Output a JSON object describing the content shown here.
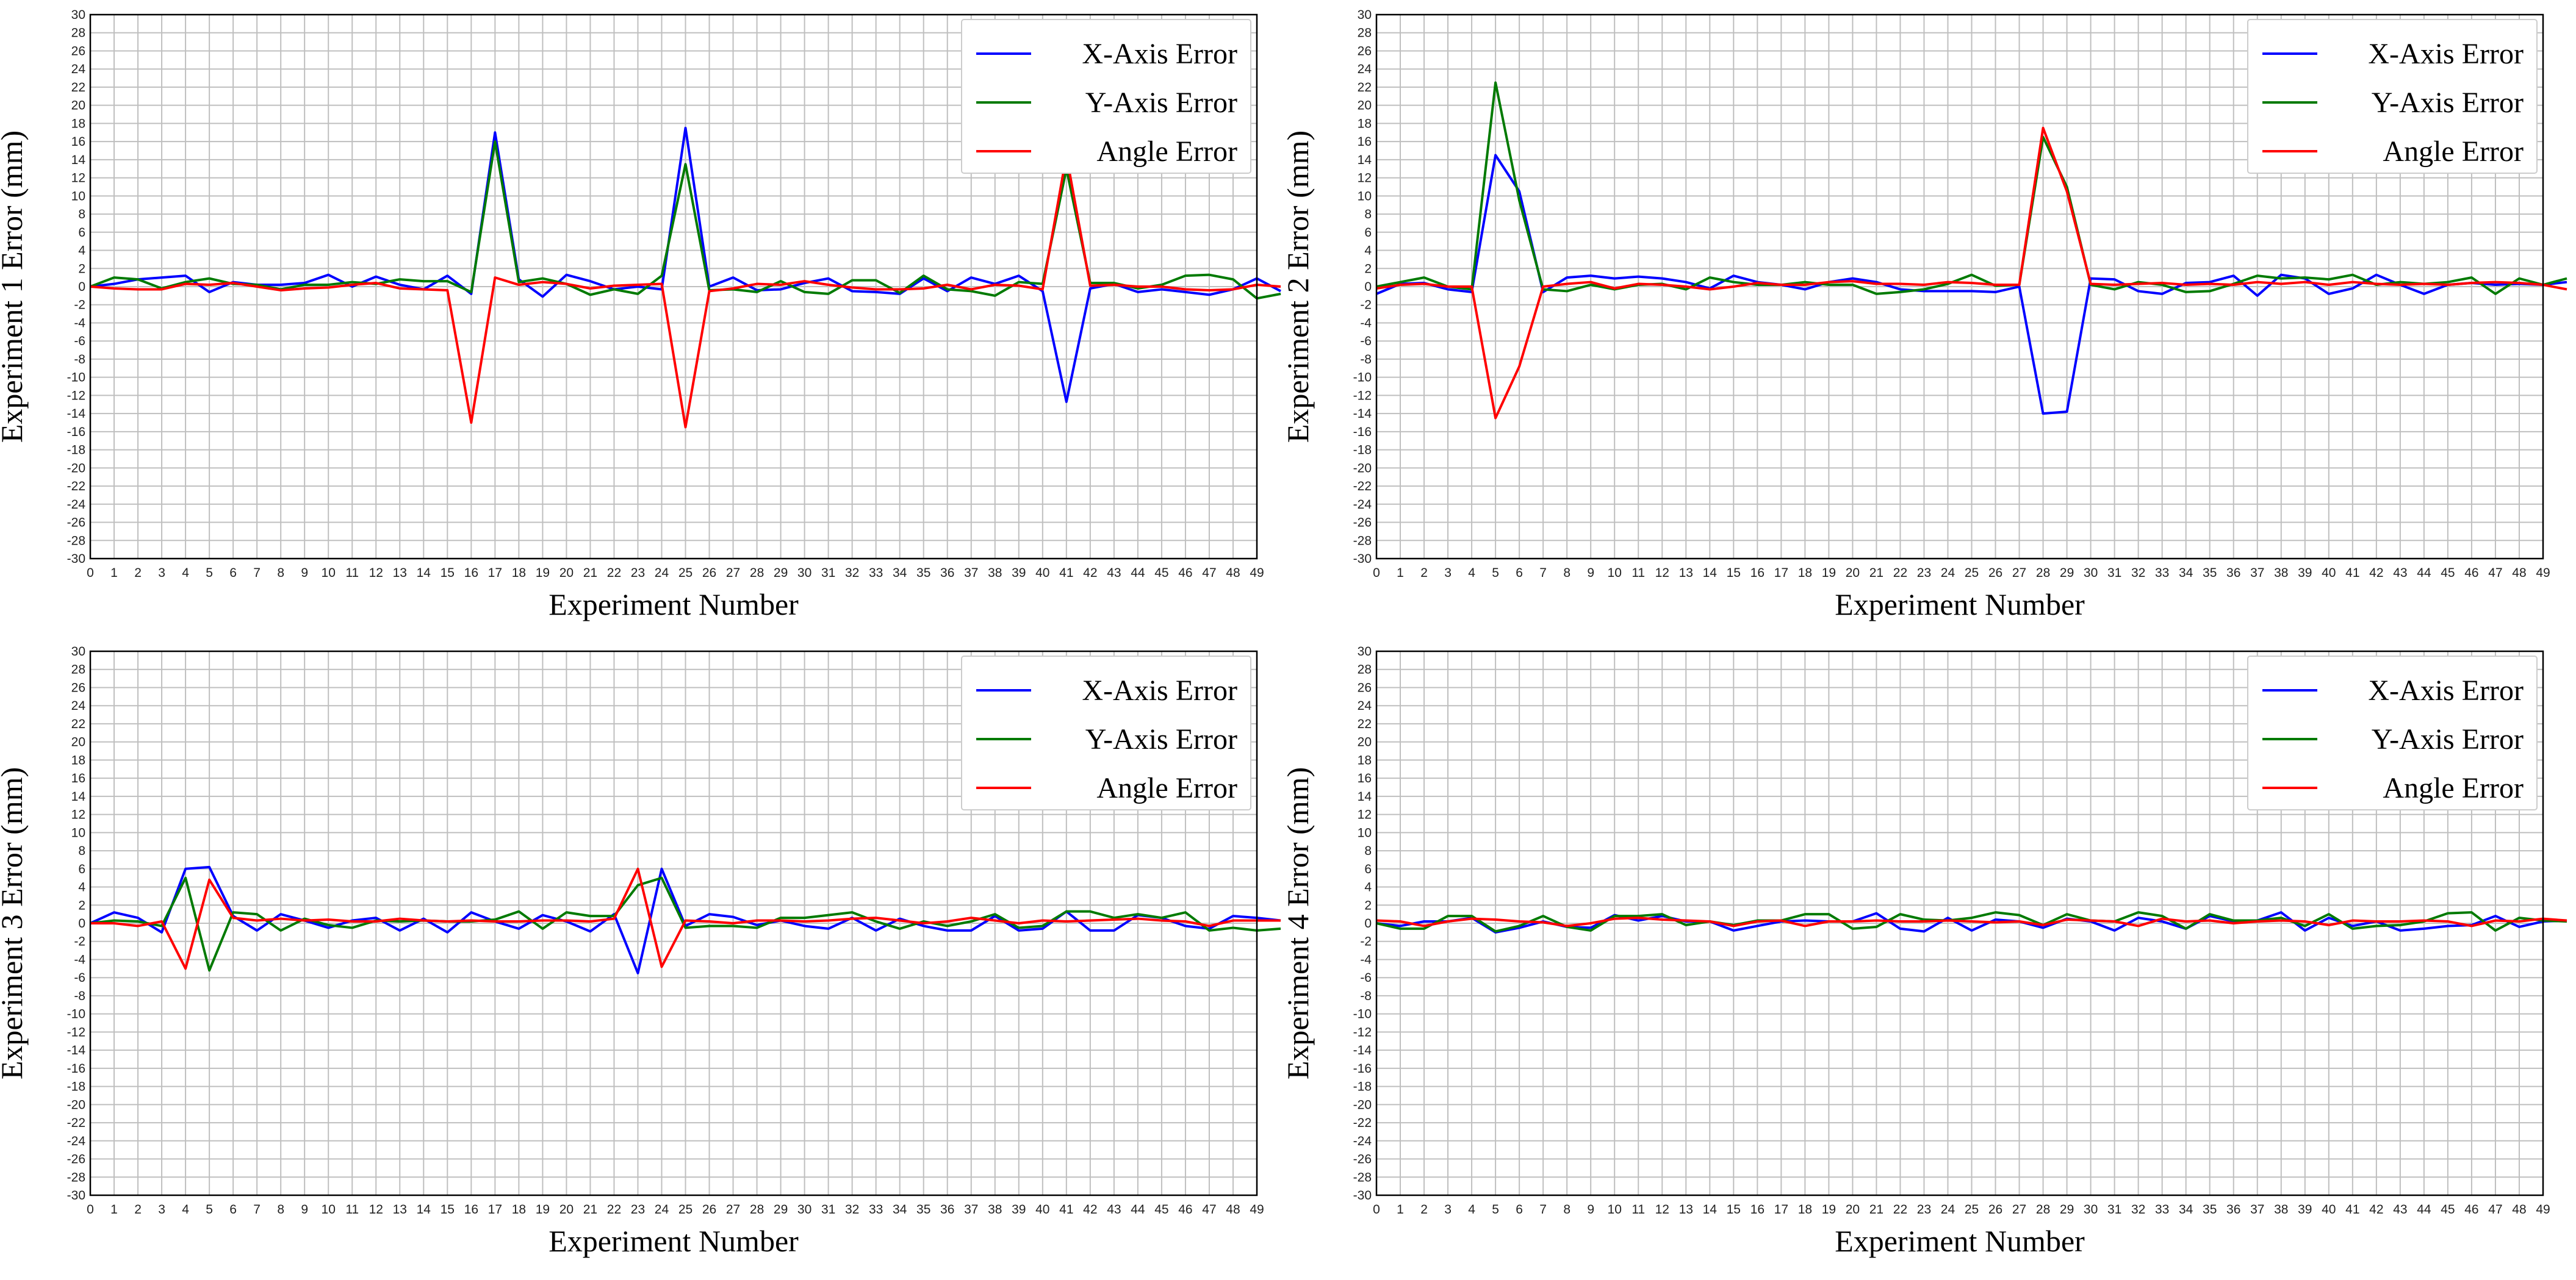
{
  "chart_data": [
    {
      "type": "line",
      "title": "",
      "xlabel": "Experiment Number",
      "ylabel": "Experiment 1 Error (mm)",
      "xlim": [
        0,
        49
      ],
      "ylim": [
        -30,
        30
      ],
      "ytick_step": 2,
      "grid": true,
      "legend_position": "top-right",
      "series": [
        {
          "name": "X-Axis Error",
          "color": "#0000ff",
          "values": [
            0,
            0.3,
            0.8,
            1,
            1.2,
            -0.6,
            0.5,
            0.2,
            0.2,
            0.4,
            1.3,
            0,
            1.1,
            0.2,
            -0.3,
            1.2,
            -0.8,
            17,
            0.8,
            -1.1,
            1.3,
            0.6,
            -0.3,
            0,
            -0.3,
            17.5,
            0,
            1,
            -0.4,
            -0.3,
            0.4,
            0.9,
            -0.5,
            -0.6,
            -0.8,
            0.9,
            -0.5,
            1,
            0.3,
            1.2,
            -0.5,
            -12.7,
            -0.2,
            0.3,
            -0.6,
            -0.3,
            -0.6,
            -0.9,
            -0.3,
            0.9,
            -0.5
          ]
        },
        {
          "name": "Y-Axis Error",
          "color": "#007a00",
          "values": [
            0,
            1,
            0.8,
            -0.2,
            0.5,
            0.9,
            0.3,
            0.2,
            -0.3,
            0.2,
            0.2,
            0.5,
            0.3,
            0.8,
            0.6,
            0.6,
            -0.6,
            16,
            0.5,
            0.9,
            0.3,
            -0.9,
            -0.3,
            -0.8,
            1.2,
            13.5,
            -0.4,
            -0.3,
            -0.6,
            0.6,
            -0.6,
            -0.8,
            0.7,
            0.7,
            -0.7,
            1.2,
            -0.3,
            -0.5,
            -1,
            0.5,
            0.3,
            13,
            0.4,
            0.4,
            -0.2,
            0.2,
            1.2,
            1.3,
            0.8,
            -1.3,
            -0.8
          ]
        },
        {
          "name": "Angle Error",
          "color": "#ff0000",
          "values": [
            0,
            -0.2,
            -0.3,
            -0.3,
            0.3,
            0.2,
            0.4,
            0,
            -0.4,
            -0.2,
            -0.1,
            0.2,
            0.4,
            -0.2,
            -0.3,
            -0.4,
            -15,
            1,
            0.2,
            0.5,
            0.3,
            -0.2,
            0.1,
            0.2,
            0.3,
            -15.5,
            -0.5,
            -0.2,
            0.3,
            0.2,
            0.6,
            0.2,
            -0.1,
            -0.3,
            -0.3,
            -0.2,
            0.2,
            -0.3,
            0.2,
            0.1,
            -0.3,
            14.5,
            0.1,
            0.2,
            0,
            0,
            -0.3,
            -0.4,
            -0.3,
            0.2,
            0
          ]
        }
      ]
    },
    {
      "type": "line",
      "title": "",
      "xlabel": "Experiment Number",
      "ylabel": "Experiment 2 Error (mm)",
      "xlim": [
        0,
        49
      ],
      "ylim": [
        -30,
        30
      ],
      "ytick_step": 2,
      "grid": true,
      "legend_position": "top-right",
      "series": [
        {
          "name": "X-Axis Error",
          "color": "#0000ff",
          "values": [
            -0.8,
            0.3,
            0.4,
            -0.3,
            -0.6,
            14.5,
            10.5,
            -0.6,
            1,
            1.2,
            0.9,
            1.1,
            0.9,
            0.5,
            -0.2,
            1.2,
            0.5,
            0.2,
            -0.3,
            0.5,
            0.9,
            0.5,
            -0.3,
            -0.5,
            -0.5,
            -0.5,
            -0.6,
            0,
            -14,
            -13.8,
            0.9,
            0.8,
            -0.5,
            -0.8,
            0.4,
            0.5,
            1.2,
            -1,
            1.3,
            0.9,
            -0.8,
            -0.2,
            1.3,
            0.2,
            -0.8,
            0.2,
            0.4,
            0.2,
            0.3,
            0.2,
            0.5
          ]
        },
        {
          "name": "Y-Axis Error",
          "color": "#007a00",
          "values": [
            0,
            0.5,
            1,
            0,
            -0.3,
            22.5,
            9.5,
            -0.3,
            -0.5,
            0.2,
            -0.3,
            0.2,
            0.3,
            -0.3,
            1,
            0.5,
            0.2,
            0.2,
            0.5,
            0.2,
            0.2,
            -0.8,
            -0.6,
            -0.3,
            0.3,
            1.3,
            0.1,
            0.2,
            16.5,
            11,
            0.2,
            -0.3,
            0.5,
            0.2,
            -0.6,
            -0.5,
            0.3,
            1.2,
            0.9,
            1,
            0.8,
            1.3,
            0.2,
            0.5,
            0.3,
            0.5,
            1,
            -0.8,
            0.9,
            0.2,
            0.9
          ]
        },
        {
          "name": "Angle Error",
          "color": "#ff0000",
          "values": [
            -0.2,
            0.2,
            0.3,
            0,
            0,
            -14.5,
            -8.8,
            0,
            0.3,
            0.5,
            -0.2,
            0.3,
            0.2,
            0,
            -0.3,
            0,
            0.4,
            0.2,
            0.2,
            0.5,
            0.6,
            0.3,
            0.3,
            0.2,
            0.5,
            0.4,
            0.2,
            0.2,
            17.5,
            10.5,
            0.3,
            0.2,
            0.3,
            0.4,
            0.2,
            0.3,
            0.2,
            0.5,
            0.3,
            0.5,
            0.2,
            0.5,
            0.3,
            0.2,
            0.3,
            0.2,
            0.4,
            0.5,
            0.4,
            0.2,
            -0.3
          ]
        }
      ]
    },
    {
      "type": "line",
      "title": "",
      "xlabel": "Experiment Number",
      "ylabel": "Experiment 3 Error (mm)",
      "xlim": [
        0,
        49
      ],
      "ylim": [
        -30,
        30
      ],
      "ytick_step": 2,
      "grid": true,
      "legend_position": "top-right",
      "series": [
        {
          "name": "X-Axis Error",
          "color": "#0000ff",
          "values": [
            0,
            1.2,
            0.6,
            -1,
            6,
            6.2,
            0.8,
            -0.8,
            1,
            0.3,
            -0.5,
            0.3,
            0.6,
            -0.8,
            0.5,
            -1,
            1.2,
            0.2,
            -0.6,
            0.9,
            0.2,
            -0.9,
            1,
            -5.5,
            6,
            -0.3,
            1,
            0.7,
            -0.2,
            0.3,
            -0.3,
            -0.6,
            0.6,
            -0.8,
            0.5,
            -0.3,
            -0.8,
            -0.8,
            0.8,
            -0.8,
            -0.6,
            1.3,
            -0.8,
            -0.8,
            0.9,
            0.6,
            -0.3,
            -0.6,
            0.8,
            0.6,
            0.3
          ]
        },
        {
          "name": "Y-Axis Error",
          "color": "#007a00",
          "values": [
            0,
            0.3,
            0.2,
            -0.3,
            5,
            -5.2,
            1.2,
            1,
            -0.8,
            0.5,
            -0.2,
            -0.5,
            0.3,
            0.2,
            0.3,
            0.2,
            0.2,
            0.4,
            1.3,
            -0.6,
            1.2,
            0.8,
            0.8,
            4.2,
            5,
            -0.5,
            -0.3,
            -0.3,
            -0.5,
            0.6,
            0.6,
            0.9,
            1.2,
            0.2,
            -0.6,
            0.2,
            -0.3,
            0.2,
            1,
            -0.5,
            -0.3,
            1.3,
            1.3,
            0.6,
            1,
            0.6,
            1.2,
            -0.8,
            -0.5,
            -0.8,
            -0.6
          ]
        },
        {
          "name": "Angle Error",
          "color": "#ff0000",
          "values": [
            0,
            0,
            -0.3,
            0.2,
            -5,
            4.8,
            0.6,
            0.3,
            0.5,
            0.3,
            0.4,
            0.2,
            0.2,
            0.5,
            0.3,
            0.2,
            0.3,
            0.2,
            0.2,
            0.3,
            0.3,
            0.2,
            0.5,
            6,
            -4.8,
            0.3,
            0.2,
            0,
            0.3,
            0.3,
            0.2,
            0.3,
            0.5,
            0.6,
            0.3,
            0,
            0.2,
            0.6,
            0.3,
            0,
            0.3,
            0.2,
            0.3,
            0.4,
            0.5,
            0.3,
            0.2,
            -0.3,
            0.3,
            0.3,
            0.3
          ]
        }
      ]
    },
    {
      "type": "line",
      "title": "",
      "xlabel": "Experiment Number",
      "ylabel": "Experiment 4 Error (mm)",
      "xlim": [
        0,
        49
      ],
      "ylim": [
        -30,
        30
      ],
      "ytick_step": 2,
      "grid": true,
      "legend_position": "top-right",
      "series": [
        {
          "name": "X-Axis Error",
          "color": "#0000ff",
          "values": [
            0,
            -0.3,
            0.2,
            0.2,
            0.6,
            -1,
            -0.5,
            0.2,
            -0.4,
            -0.5,
            0.9,
            0.3,
            0.8,
            0.2,
            0.2,
            -0.8,
            -0.3,
            0.2,
            0.3,
            0.2,
            0.2,
            1.1,
            -0.6,
            -0.9,
            0.6,
            -0.8,
            0.4,
            0.2,
            -0.5,
            0.5,
            0.2,
            -0.8,
            0.6,
            0.2,
            -0.6,
            0.8,
            0.2,
            0.3,
            1.2,
            -0.8,
            0.6,
            -0.3,
            0.2,
            -0.8,
            -0.6,
            -0.3,
            -0.2,
            0.8,
            -0.4,
            0.2,
            0.3
          ]
        },
        {
          "name": "Y-Axis Error",
          "color": "#007a00",
          "values": [
            0,
            -0.6,
            -0.6,
            0.8,
            0.8,
            -0.9,
            -0.3,
            0.8,
            -0.4,
            -0.8,
            0.8,
            0.8,
            1,
            -0.2,
            0.2,
            -0.2,
            0.3,
            0.3,
            1,
            1,
            -0.6,
            -0.4,
            1,
            0.4,
            0.3,
            0.6,
            1.2,
            0.9,
            -0.2,
            1,
            0.3,
            0.2,
            1.2,
            0.8,
            -0.6,
            1,
            0.3,
            0.3,
            0.6,
            -0.3,
            1,
            -0.6,
            -0.3,
            -0.2,
            0.2,
            1.1,
            1.2,
            -0.8,
            0.6,
            0.3,
            0.2
          ]
        },
        {
          "name": "Angle Error",
          "color": "#ff0000",
          "values": [
            0.3,
            0.2,
            -0.3,
            0.2,
            0.5,
            0.4,
            0.2,
            0.1,
            -0.3,
            0,
            0.5,
            0.6,
            0.4,
            0.3,
            0.2,
            -0.3,
            0.2,
            0.3,
            -0.3,
            0.2,
            0.2,
            0.3,
            0.2,
            0.2,
            0.3,
            0.2,
            0.1,
            0.2,
            -0.2,
            0.4,
            0.3,
            0.2,
            -0.3,
            0.5,
            0.2,
            0.3,
            0,
            0.2,
            0.3,
            0.2,
            -0.2,
            0.3,
            0.2,
            0.2,
            0.3,
            0.2,
            -0.3,
            0.3,
            0.2,
            0.5,
            0.3
          ]
        }
      ]
    }
  ]
}
